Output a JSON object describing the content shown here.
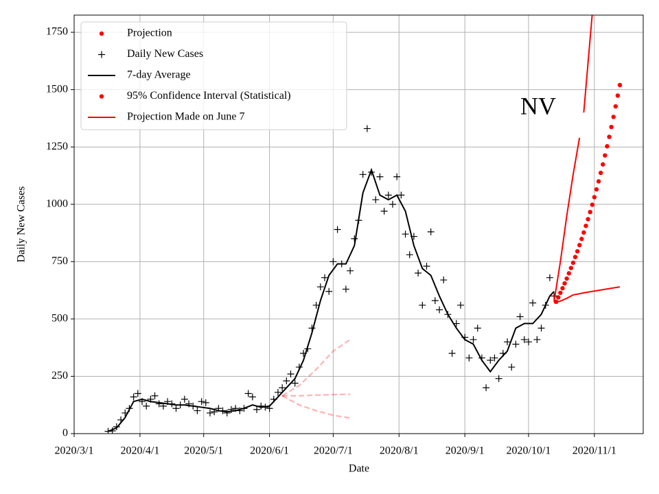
{
  "chart_data": {
    "type": "line",
    "annotation": "NV",
    "x_label": "Date",
    "y_label": "Daily New Cases",
    "xlim": [
      "2020-03-01",
      "2020-11-24"
    ],
    "ylim": [
      0,
      1825
    ],
    "xticks": [
      {
        "value": "2020-03-01",
        "label": "2020/3/1"
      },
      {
        "value": "2020-04-01",
        "label": "2020/4/1"
      },
      {
        "value": "2020-05-01",
        "label": "2020/5/1"
      },
      {
        "value": "2020-06-01",
        "label": "2020/6/1"
      },
      {
        "value": "2020-07-01",
        "label": "2020/7/1"
      },
      {
        "value": "2020-08-01",
        "label": "2020/8/1"
      },
      {
        "value": "2020-09-01",
        "label": "2020/9/1"
      },
      {
        "value": "2020-10-01",
        "label": "2020/10/1"
      },
      {
        "value": "2020-11-01",
        "label": "2020/11/1"
      }
    ],
    "yticks": [
      0,
      250,
      500,
      750,
      1000,
      1250,
      1500,
      1750
    ],
    "grid": true,
    "legend": "upper left",
    "series": [
      {
        "name": "Projection",
        "color": "#ff0000",
        "style": "dot",
        "x": [
          "2020-10-14",
          "2020-10-15",
          "2020-10-16",
          "2020-10-17",
          "2020-10-18",
          "2020-10-19",
          "2020-10-20",
          "2020-10-21",
          "2020-10-22",
          "2020-10-23",
          "2020-10-24",
          "2020-10-25",
          "2020-10-26",
          "2020-10-27",
          "2020-10-28",
          "2020-10-29",
          "2020-10-30",
          "2020-10-31",
          "2020-11-01",
          "2020-11-02",
          "2020-11-03",
          "2020-11-04",
          "2020-11-05",
          "2020-11-06",
          "2020-11-07",
          "2020-11-08",
          "2020-11-09",
          "2020-11-10",
          "2020-11-11",
          "2020-11-12",
          "2020-11-13"
        ],
        "values": [
          575,
          594,
          614,
          634,
          655,
          676,
          699,
          722,
          745,
          770,
          795,
          822,
          849,
          877,
          906,
          935,
          966,
          998,
          1031,
          1065,
          1100,
          1137,
          1174,
          1213,
          1253,
          1294,
          1337,
          1381,
          1427,
          1474,
          1520
        ]
      },
      {
        "name": "Daily New Cases",
        "color": "#000000",
        "style": "plus",
        "x": [
          "2020-03-17",
          "2020-03-19",
          "2020-03-21",
          "2020-03-23",
          "2020-03-25",
          "2020-03-27",
          "2020-03-29",
          "2020-03-31",
          "2020-04-02",
          "2020-04-04",
          "2020-04-06",
          "2020-04-08",
          "2020-04-10",
          "2020-04-12",
          "2020-04-14",
          "2020-04-16",
          "2020-04-18",
          "2020-04-20",
          "2020-04-22",
          "2020-04-24",
          "2020-04-26",
          "2020-04-28",
          "2020-04-30",
          "2020-05-02",
          "2020-05-04",
          "2020-05-06",
          "2020-05-08",
          "2020-05-10",
          "2020-05-12",
          "2020-05-14",
          "2020-05-16",
          "2020-05-18",
          "2020-05-20",
          "2020-05-22",
          "2020-05-24",
          "2020-05-26",
          "2020-05-28",
          "2020-05-30",
          "2020-06-01",
          "2020-06-03",
          "2020-06-05",
          "2020-06-07",
          "2020-06-09",
          "2020-06-11",
          "2020-06-13",
          "2020-06-15",
          "2020-06-17",
          "2020-06-19",
          "2020-06-21",
          "2020-06-23",
          "2020-06-25",
          "2020-06-27",
          "2020-06-29",
          "2020-07-01",
          "2020-07-03",
          "2020-07-05",
          "2020-07-07",
          "2020-07-09",
          "2020-07-11",
          "2020-07-13",
          "2020-07-15",
          "2020-07-17",
          "2020-07-19",
          "2020-07-21",
          "2020-07-23",
          "2020-07-25",
          "2020-07-27",
          "2020-07-29",
          "2020-07-31",
          "2020-08-02",
          "2020-08-04",
          "2020-08-06",
          "2020-08-08",
          "2020-08-10",
          "2020-08-12",
          "2020-08-14",
          "2020-08-16",
          "2020-08-18",
          "2020-08-20",
          "2020-08-22",
          "2020-08-24",
          "2020-08-26",
          "2020-08-28",
          "2020-08-30",
          "2020-09-01",
          "2020-09-03",
          "2020-09-05",
          "2020-09-07",
          "2020-09-09",
          "2020-09-11",
          "2020-09-13",
          "2020-09-15",
          "2020-09-17",
          "2020-09-19",
          "2020-09-21",
          "2020-09-23",
          "2020-09-25",
          "2020-09-27",
          "2020-09-29",
          "2020-10-01",
          "2020-10-03",
          "2020-10-05",
          "2020-10-07",
          "2020-10-09",
          "2020-10-11",
          "2020-10-13"
        ],
        "values": [
          10,
          12,
          30,
          60,
          90,
          110,
          160,
          175,
          140,
          120,
          150,
          165,
          130,
          120,
          140,
          130,
          110,
          125,
          150,
          130,
          120,
          100,
          140,
          135,
          90,
          95,
          110,
          100,
          90,
          105,
          110,
          100,
          110,
          175,
          160,
          105,
          120,
          115,
          110,
          150,
          180,
          200,
          230,
          260,
          220,
          290,
          350,
          370,
          460,
          560,
          640,
          680,
          620,
          750,
          890,
          740,
          630,
          710,
          850,
          930,
          1130,
          1330,
          1140,
          1020,
          1120,
          970,
          1040,
          1000,
          1120,
          1040,
          870,
          780,
          860,
          700,
          560,
          730,
          880,
          580,
          540,
          670,
          520,
          350,
          480,
          560,
          420,
          330,
          410,
          460,
          330,
          200,
          320,
          330,
          240,
          350,
          400,
          290,
          390,
          510,
          410,
          400,
          570,
          410,
          460,
          560,
          680,
          600
        ]
      },
      {
        "name": "7-day Average",
        "color": "#000000",
        "style": "line",
        "x": [
          "2020-03-17",
          "2020-03-21",
          "2020-03-25",
          "2020-03-29",
          "2020-04-02",
          "2020-04-06",
          "2020-04-10",
          "2020-04-14",
          "2020-04-18",
          "2020-04-22",
          "2020-04-26",
          "2020-04-30",
          "2020-05-04",
          "2020-05-08",
          "2020-05-12",
          "2020-05-16",
          "2020-05-20",
          "2020-05-24",
          "2020-05-28",
          "2020-06-01",
          "2020-06-05",
          "2020-06-09",
          "2020-06-13",
          "2020-06-17",
          "2020-06-21",
          "2020-06-25",
          "2020-06-29",
          "2020-07-03",
          "2020-07-07",
          "2020-07-11",
          "2020-07-15",
          "2020-07-19",
          "2020-07-23",
          "2020-07-27",
          "2020-07-31",
          "2020-08-04",
          "2020-08-08",
          "2020-08-12",
          "2020-08-16",
          "2020-08-20",
          "2020-08-24",
          "2020-08-28",
          "2020-09-01",
          "2020-09-05",
          "2020-09-09",
          "2020-09-13",
          "2020-09-17",
          "2020-09-21",
          "2020-09-25",
          "2020-09-29",
          "2020-10-03",
          "2020-10-07",
          "2020-10-11",
          "2020-10-13"
        ],
        "values": [
          10,
          25,
          70,
          140,
          150,
          140,
          135,
          130,
          125,
          125,
          120,
          115,
          110,
          100,
          95,
          100,
          110,
          125,
          115,
          120,
          160,
          200,
          240,
          320,
          440,
          580,
          690,
          740,
          740,
          820,
          1050,
          1150,
          1040,
          1020,
          1040,
          970,
          820,
          720,
          690,
          600,
          520,
          460,
          410,
          390,
          320,
          270,
          320,
          360,
          460,
          480,
          480,
          520,
          600,
          620
        ]
      },
      {
        "name": "95% Confidence Interval (Statistical)",
        "color": "#ff0000",
        "style": "band-dot",
        "x": [
          "2020-10-13",
          "2020-10-16",
          "2020-10-19",
          "2020-10-22",
          "2020-10-25",
          "2020-10-26",
          "2020-10-27",
          "2020-10-31",
          "2020-11-13"
        ],
        "upper": [
          575,
          750,
          950,
          1130,
          1290,
          null,
          1400,
          1830,
          null
        ],
        "lower": [
          570,
          578,
          590,
          605,
          610,
          612,
          614,
          620,
          640
        ]
      },
      {
        "name": "Projection Made on June 7",
        "color": "#ff0000",
        "style": "band-dashed",
        "alpha": 0.3,
        "x": [
          "2020-06-07",
          "2020-06-15",
          "2020-06-23",
          "2020-07-01",
          "2020-07-09"
        ],
        "values": [
          165,
          165,
          168,
          170,
          172
        ],
        "upper": [
          165,
          210,
          280,
          360,
          410
        ],
        "lower": [
          165,
          125,
          100,
          80,
          68
        ]
      }
    ]
  }
}
